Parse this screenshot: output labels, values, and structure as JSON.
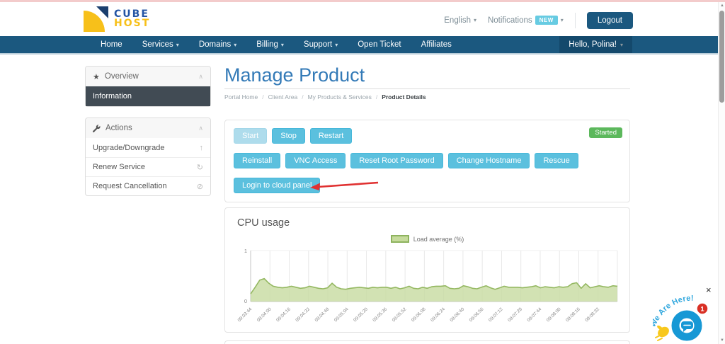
{
  "icons": {
    "caret_down": "▾",
    "chevron_up": "∧",
    "star": "★",
    "upgrade": "↑",
    "renew": "↻",
    "cancel": "⊘",
    "close": "×",
    "scroll_up": "▲",
    "scroll_down": "▼"
  },
  "header": {
    "logo_line1": "CUBE",
    "logo_line2": "HOST",
    "language": "English",
    "notifications_label": "Notifications",
    "new_badge": "NEW",
    "logout_label": "Logout"
  },
  "nav": {
    "items": [
      {
        "label": "Home",
        "dropdown": false
      },
      {
        "label": "Services",
        "dropdown": true
      },
      {
        "label": "Domains",
        "dropdown": true
      },
      {
        "label": "Billing",
        "dropdown": true
      },
      {
        "label": "Support",
        "dropdown": true
      },
      {
        "label": "Open Ticket",
        "dropdown": false
      },
      {
        "label": "Affiliates",
        "dropdown": false
      }
    ],
    "greeting": "Hello, Polina!"
  },
  "sidebar": {
    "overview_title": "Overview",
    "information_label": "Information",
    "actions_title": "Actions",
    "action_items": [
      {
        "label": "Upgrade/Downgrade"
      },
      {
        "label": "Renew Service"
      },
      {
        "label": "Request Cancellation"
      }
    ]
  },
  "main": {
    "title": "Manage Product",
    "separator": "/",
    "breadcrumb": [
      "Portal Home",
      "Client Area",
      "My Products & Services",
      "Product Details"
    ]
  },
  "product_actions": {
    "status_badge": "Started",
    "power_buttons": [
      {
        "label": "Start",
        "disabled": true
      },
      {
        "label": "Stop",
        "disabled": false
      },
      {
        "label": "Restart",
        "disabled": false
      }
    ],
    "manage_buttons": [
      "Reinstall",
      "VNC Access",
      "Reset Root Password",
      "Change Hostname",
      "Rescue"
    ],
    "login_button": "Login to cloud panel"
  },
  "cpu_card": {
    "title": "CPU usage"
  },
  "chart_data": {
    "type": "area",
    "title": "CPU usage",
    "xlabel": "",
    "ylabel": "",
    "ylim": [
      0,
      1
    ],
    "y_ticks": [
      0,
      1
    ],
    "grid": "vertical",
    "legend_position": "top-center",
    "fill_color": "#c7dba0",
    "line_color": "#94b861",
    "x_tick_labels": [
      "09:03:44",
      "09:04:00",
      "09:04:16",
      "09:04:32",
      "09:04:48",
      "09:05:04",
      "09:05:20",
      "09:05:36",
      "09:05:52",
      "09:06:08",
      "09:06:24",
      "09:06:40",
      "09:06:56",
      "09:07:12",
      "09:07:28",
      "09:07:44",
      "09:08:00",
      "09:08:16",
      "09:08:32"
    ],
    "series": [
      {
        "name": "Load average (%)",
        "values": [
          0.15,
          0.28,
          0.42,
          0.45,
          0.36,
          0.3,
          0.28,
          0.27,
          0.28,
          0.3,
          0.28,
          0.26,
          0.27,
          0.3,
          0.28,
          0.26,
          0.25,
          0.27,
          0.36,
          0.28,
          0.25,
          0.24,
          0.26,
          0.27,
          0.28,
          0.27,
          0.26,
          0.28,
          0.27,
          0.28,
          0.28,
          0.26,
          0.28,
          0.25,
          0.27,
          0.3,
          0.26,
          0.25,
          0.28,
          0.26,
          0.29,
          0.3,
          0.3,
          0.31,
          0.26,
          0.25,
          0.26,
          0.31,
          0.29,
          0.26,
          0.25,
          0.28,
          0.31,
          0.27,
          0.24,
          0.27,
          0.3,
          0.28,
          0.28,
          0.28,
          0.27,
          0.28,
          0.29,
          0.31,
          0.27,
          0.29,
          0.28,
          0.27,
          0.29,
          0.28,
          0.29,
          0.35,
          0.37,
          0.26,
          0.35,
          0.27,
          0.29,
          0.31,
          0.29,
          0.28,
          0.31,
          0.3
        ]
      }
    ]
  },
  "chat_widget": {
    "text": "We Are Here!",
    "badge": "1"
  }
}
